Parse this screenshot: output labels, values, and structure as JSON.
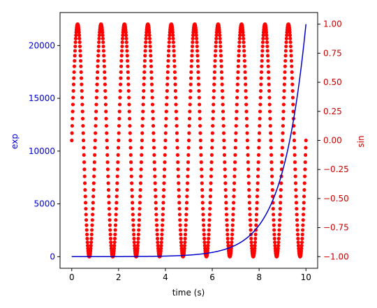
{
  "chart_data": {
    "type": "line",
    "xlabel": "time (s)",
    "xlim": [
      -0.5,
      10.5
    ],
    "x_ticks": [
      0,
      2,
      4,
      6,
      8,
      10
    ],
    "x_tick_labels": [
      "0",
      "2",
      "4",
      "6",
      "8",
      "10"
    ],
    "left_axis": {
      "label": "exp",
      "color": "#0000cc",
      "ylim": [
        -1101,
        23127
      ],
      "ticks": [
        0,
        5000,
        10000,
        15000,
        20000
      ],
      "tick_labels": [
        "0",
        "5000",
        "10000",
        "15000",
        "20000"
      ]
    },
    "right_axis": {
      "label": "sin",
      "color": "#cc0000",
      "ylim": [
        -1.1,
        1.1
      ],
      "ticks": [
        -1.0,
        -0.75,
        -0.5,
        -0.25,
        0.0,
        0.25,
        0.5,
        0.75,
        1.0
      ],
      "tick_labels": [
        "−1.00",
        "−0.75",
        "−0.50",
        "−0.25",
        "0.00",
        "0.25",
        "0.50",
        "0.75",
        "1.00"
      ]
    },
    "series": [
      {
        "axis": "left",
        "style": "line",
        "color": "#0000cc",
        "x_range": [
          0,
          10
        ],
        "function": "exp(t)"
      },
      {
        "axis": "right",
        "style": "points",
        "color": "#ff0000",
        "x_range": [
          0,
          10
        ],
        "function": "sin(2*pi*t)",
        "sample_step": 0.01
      }
    ],
    "grid": false,
    "legend": "none"
  }
}
